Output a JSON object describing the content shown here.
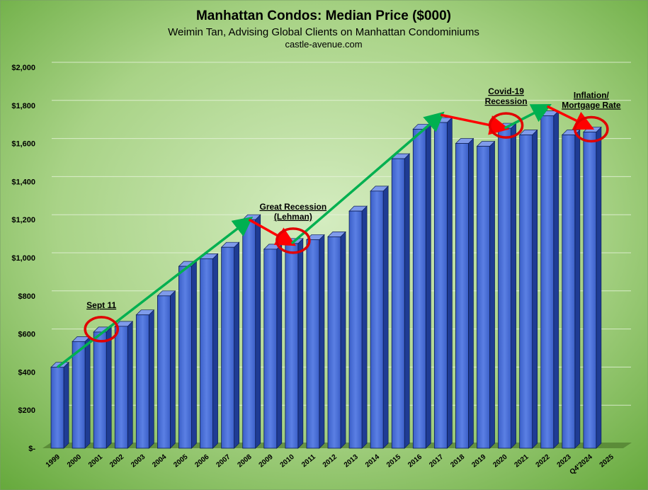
{
  "chart_data": {
    "type": "bar",
    "title": "Manhattan Condos: Median Price ($000)",
    "subtitle": "Weimin Tan, Advising Global Clients on Manhattan Condominiums",
    "source": "castle-avenue.com",
    "categories": [
      "1999",
      "2000",
      "2001",
      "2002",
      "2003",
      "2004",
      "2005",
      "2006",
      "2007",
      "2008",
      "2009",
      "2010",
      "2011",
      "2012",
      "2013",
      "2014",
      "2015",
      "2016",
      "2017",
      "2018",
      "2019",
      "2020",
      "2021",
      "2022",
      "2023",
      "Q4'2024",
      "2025"
    ],
    "values": [
      425,
      560,
      610,
      640,
      700,
      800,
      955,
      995,
      1055,
      1200,
      1045,
      1075,
      1095,
      1110,
      1245,
      1350,
      1520,
      1675,
      1710,
      1600,
      1585,
      1680,
      1645,
      1745,
      1645,
      1660,
      null
    ],
    "y_tick_labels": [
      "$-",
      "$200",
      "$400",
      "$600",
      "$800",
      "$1,000",
      "$1,200",
      "$1,400",
      "$1,600",
      "$1,800",
      "$2,000"
    ],
    "ylim": [
      0,
      2000
    ],
    "grid": true,
    "legend": "none",
    "colors": {
      "bar_front": "#4a6fd6",
      "bar_side": "#1f3c94",
      "bar_top": "#7f9bea",
      "trend_up": "#00b050",
      "trend_down": "#ff0000",
      "circle": "#e00000",
      "background_light": "#c8e4b0",
      "background_dark": "#6fae3e"
    },
    "annotations": [
      {
        "lines": [
          "Sept 11"
        ],
        "category": "2001"
      },
      {
        "lines": [
          "Great Recession",
          "(Lehman)"
        ],
        "category": "2010"
      },
      {
        "lines": [
          "Covid-19",
          "Recession"
        ],
        "category": "2020"
      },
      {
        "lines": [
          "Inflation/",
          "Mortgage Rate"
        ],
        "category": "Q4'2024"
      }
    ],
    "trend_lines": [
      {
        "color": "up",
        "from": [
          "1999",
          425
        ],
        "to": [
          "2008",
          1200
        ]
      },
      {
        "color": "down",
        "from": [
          "2008",
          1200
        ],
        "to": [
          "2010",
          1075
        ]
      },
      {
        "color": "up",
        "from": [
          "2010",
          1075
        ],
        "to": [
          "2017",
          1750
        ]
      },
      {
        "color": "down",
        "from": [
          "2017",
          1750
        ],
        "to": [
          "2020",
          1680
        ]
      },
      {
        "color": "up",
        "from": [
          "2020",
          1680
        ],
        "to": [
          "2022",
          1795
        ]
      },
      {
        "color": "down",
        "from": [
          "2022",
          1795
        ],
        "to": [
          "Q4'2024",
          1685
        ]
      }
    ],
    "highlight_circles": [
      "2001",
      "2010",
      "2020",
      "Q4'2024"
    ]
  }
}
